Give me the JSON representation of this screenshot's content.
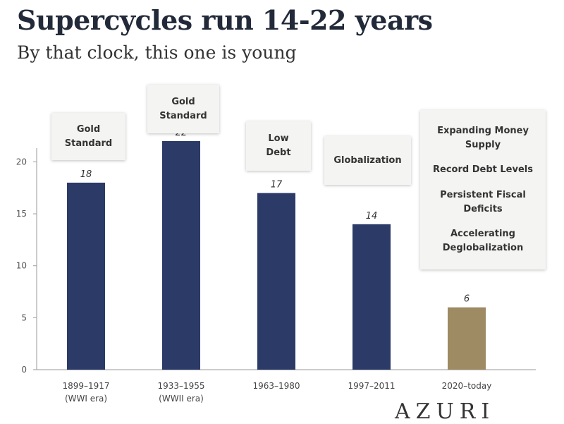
{
  "title": "Supercycles run 14-22 years",
  "subtitle": "By that clock, this one is young",
  "logo_text": "AZURI",
  "colors": {
    "bar_primary": "#2b3a67",
    "bar_current": "#9e8a63"
  },
  "annotations": [
    {
      "lines": [
        "Gold",
        "Standard"
      ]
    },
    {
      "lines": [
        "Gold",
        "Standard"
      ]
    },
    {
      "lines": [
        "Low",
        "Debt"
      ]
    },
    {
      "lines": [
        "Globalization"
      ]
    },
    {
      "lines": [
        "Expanding Money Supply",
        "Record Debt Levels",
        "Persistent Fiscal Deficits",
        "Accelerating Deglobalization"
      ]
    }
  ],
  "chart_data": {
    "type": "bar",
    "title": "Supercycles run 14-22 years",
    "subtitle": "By that clock, this one is young",
    "categories": [
      "1899–1917",
      "1933–1955",
      "1963–1980",
      "1997–2011",
      "2020–today"
    ],
    "category_sublabels": [
      "(WWI era)",
      "(WWII era)",
      "",
      "",
      ""
    ],
    "values": [
      18,
      22,
      17,
      14,
      6
    ],
    "data_labels": [
      "18",
      "22",
      "17",
      "14",
      "6"
    ],
    "yticks": [
      0,
      5,
      10,
      15,
      20
    ],
    "ylim": [
      0,
      22
    ],
    "xlabel": "",
    "ylabel": "",
    "grid": false,
    "legend": "none"
  }
}
